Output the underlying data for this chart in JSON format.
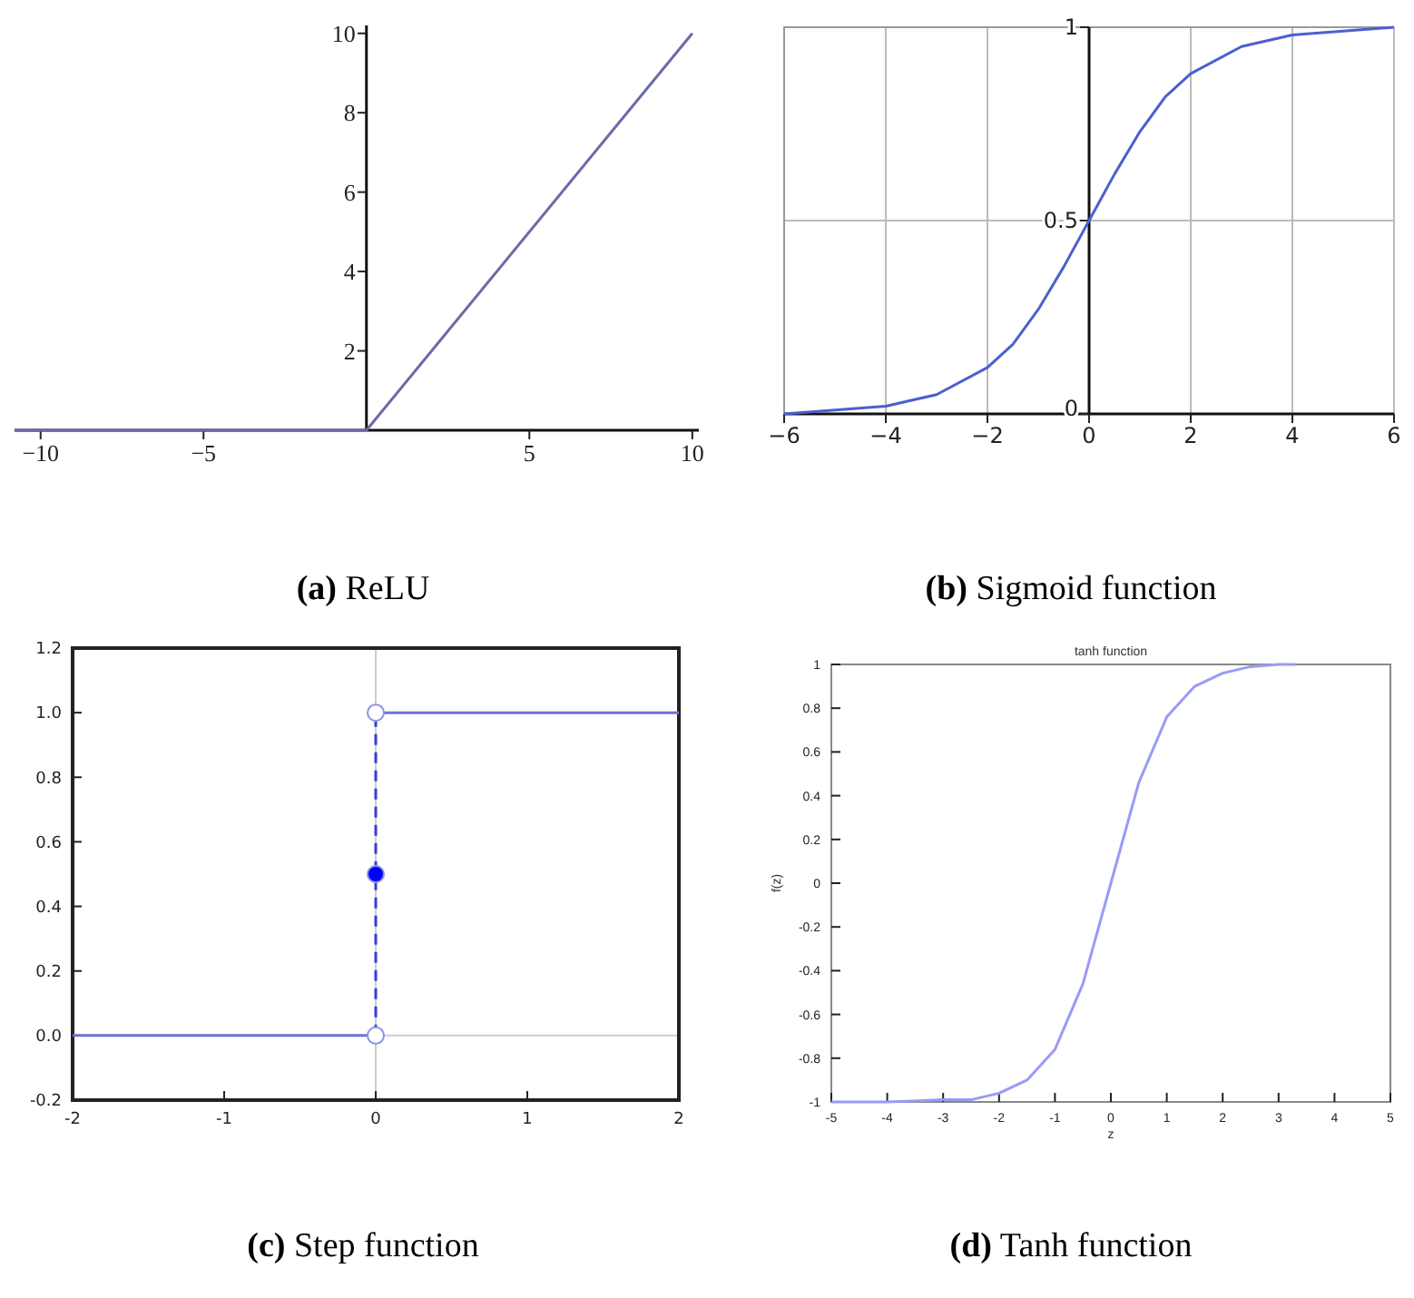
{
  "chart_data": [
    {
      "type": "line",
      "xlim": [
        -10.8,
        10.2
      ],
      "ylim": [
        0,
        10.2
      ],
      "xticks": [
        {
          "value": -10,
          "label": "−10"
        },
        {
          "value": -5,
          "label": "−5"
        },
        5,
        10
      ],
      "yticks": [
        2,
        4,
        6,
        8,
        10
      ],
      "grid": false,
      "series": [
        {
          "color": "#6b6ba8",
          "x": [
            -10.8,
            0,
            10
          ],
          "values": [
            0,
            0,
            10
          ]
        }
      ],
      "annotations": [
        "(a) ReLU"
      ]
    },
    {
      "type": "line",
      "xlim": [
        -6,
        6
      ],
      "ylim": [
        0,
        1
      ],
      "xticks": [
        {
          "value": -6,
          "label": "−6"
        },
        {
          "value": -4,
          "label": "−4"
        },
        {
          "value": -2,
          "label": "−2"
        },
        0,
        2,
        4,
        6
      ],
      "yticks": [
        0,
        0.5,
        1
      ],
      "grid": true,
      "series": [
        {
          "color": "#4c5fd0",
          "x": [
            -6,
            -5,
            -4,
            -3,
            -2,
            -1.5,
            -1,
            -0.5,
            0,
            0.5,
            1,
            1.5,
            2,
            3,
            4,
            5,
            6
          ],
          "values": [
            0,
            0.01,
            0.02,
            0.05,
            0.12,
            0.18,
            0.27,
            0.38,
            0.5,
            0.62,
            0.73,
            0.82,
            0.88,
            0.95,
            0.98,
            0.99,
            1
          ]
        }
      ],
      "annotations": [
        "(b) Sigmoid function"
      ]
    },
    {
      "type": "line",
      "xlim": [
        -2,
        2
      ],
      "ylim": [
        -0.2,
        1.2
      ],
      "xticks": [
        -2,
        -1,
        0,
        1,
        2
      ],
      "yticks": [
        -0.2,
        {
          "value": 0,
          "label": "0.0"
        },
        0.2,
        0.4,
        0.6,
        0.8,
        {
          "value": 1,
          "label": "1.0"
        },
        1.2
      ],
      "series": [
        {
          "color": "#7070d8",
          "x": [
            -2,
            0
          ],
          "values": [
            0,
            0
          ]
        },
        {
          "color": "#7070d8",
          "x": [
            0,
            2
          ],
          "values": [
            1,
            1
          ]
        },
        {
          "color": "#3a3ad8",
          "x": [
            0,
            0
          ],
          "values": [
            0,
            1
          ],
          "line_style": "dashed"
        },
        {
          "type": "scatter",
          "color": "#ffffff",
          "marker": "circle",
          "x": [
            0,
            0
          ],
          "values": [
            0,
            1
          ]
        },
        {
          "type": "scatter",
          "color": "#0000ff",
          "marker": "circle",
          "x": [
            0
          ],
          "values": [
            0.5
          ]
        }
      ],
      "annotations": [
        "(c) Step function"
      ]
    },
    {
      "type": "line",
      "title": "tanh function",
      "xlabel": "z",
      "ylabel": "f(z)",
      "xlim": [
        -5,
        5
      ],
      "ylim": [
        -1,
        1
      ],
      "xticks": [
        -5,
        -4,
        -3,
        -2,
        -1,
        0,
        1,
        2,
        3,
        4,
        5
      ],
      "yticks": [
        -1,
        -0.8,
        -0.6,
        -0.4,
        -0.2,
        0,
        0.2,
        0.4,
        0.6,
        0.8,
        1
      ],
      "series": [
        {
          "color": "#9a9af5",
          "x": [
            -5,
            -4,
            -3,
            -2.5,
            -2,
            -1.5,
            -1,
            -0.5,
            0,
            0.5,
            1,
            1.5,
            2,
            2.5,
            3,
            3.3
          ],
          "values": [
            -1,
            -1,
            -0.99,
            -0.99,
            -0.96,
            -0.9,
            -0.76,
            -0.46,
            0,
            0.46,
            0.76,
            0.9,
            0.96,
            0.99,
            1,
            1
          ]
        }
      ],
      "annotations": [
        "(d) Tanh function"
      ]
    }
  ]
}
